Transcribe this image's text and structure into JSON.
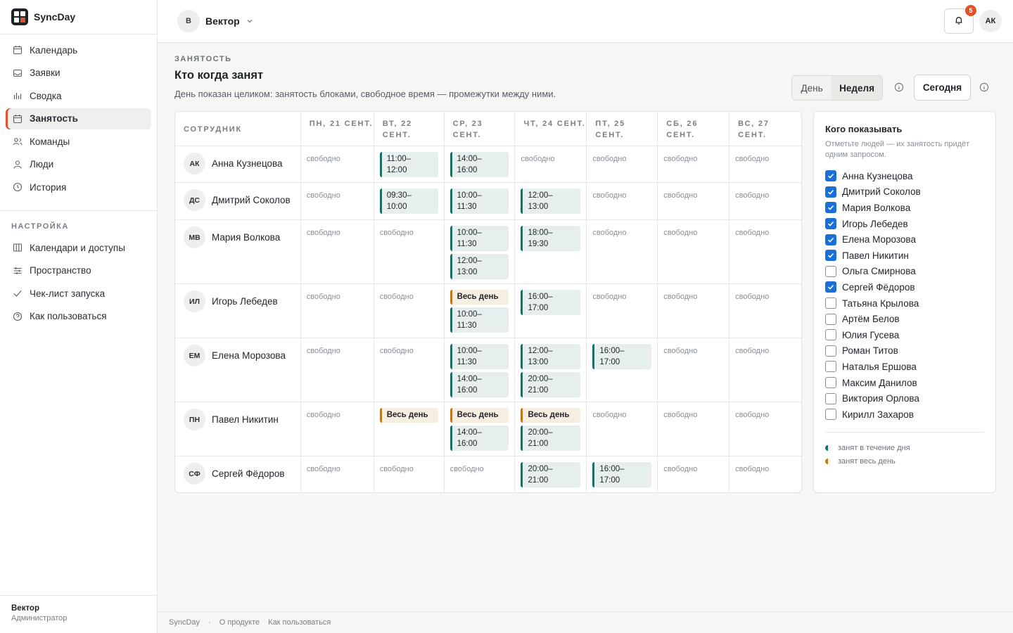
{
  "brand": {
    "name": "SyncDay"
  },
  "sidebar": {
    "items": [
      {
        "label": "Календарь",
        "icon": "calendar-icon"
      },
      {
        "label": "Заявки",
        "icon": "inbox-icon"
      },
      {
        "label": "Сводка",
        "icon": "bar-chart-icon"
      },
      {
        "label": "Занятость",
        "icon": "calendar-icon",
        "active": true
      },
      {
        "label": "Команды",
        "icon": "users-icon"
      },
      {
        "label": "Люди",
        "icon": "user-icon"
      },
      {
        "label": "История",
        "icon": "clock-icon"
      }
    ],
    "section_title": "НАСТРОЙКА",
    "settings_items": [
      {
        "label": "Календари и доступы",
        "icon": "columns-icon"
      },
      {
        "label": "Пространство",
        "icon": "sliders-icon"
      },
      {
        "label": "Чек-лист запуска",
        "icon": "check-icon"
      },
      {
        "label": "Как пользоваться",
        "icon": "help-circle-icon"
      }
    ],
    "footer": {
      "name": "Вектор",
      "role": "Администратор"
    }
  },
  "topbar": {
    "workspace_initial": "В",
    "workspace_name": "Вектор",
    "notifications_count": "5",
    "user_initials": "АК"
  },
  "page": {
    "eyebrow": "ЗАНЯТОСТЬ",
    "title": "Кто когда занят",
    "subtitle": "День показан целиком: занятость блоками, свободное время — промежутки между ними.",
    "view_day": "День",
    "view_week": "Неделя",
    "today_label": "Сегодня"
  },
  "grid": {
    "employee_header": "СОТРУДНИК",
    "days": [
      "ПН, 21 СЕНТ.",
      "ВТ, 22 СЕНТ.",
      "СР, 23 СЕНТ.",
      "ЧТ, 24 СЕНТ.",
      "ПТ, 25 СЕНТ.",
      "СБ, 26 СЕНТ.",
      "ВС, 27 СЕНТ."
    ],
    "free_label": "свободно",
    "rows": [
      {
        "initials": "АК",
        "name": "Анна Кузнецова",
        "height": 52,
        "cells": [
          [],
          [
            {
              "t": "11:00–\n12:00"
            }
          ],
          [
            {
              "t": "14:00–\n16:00"
            }
          ],
          [],
          [],
          [],
          []
        ]
      },
      {
        "initials": "ДС",
        "name": "Дмитрий Соколов",
        "height": 53,
        "cells": [
          [],
          [
            {
              "t": "09:30–\n10:00"
            }
          ],
          [
            {
              "t": "10:00–\n11:30"
            }
          ],
          [
            {
              "t": "12:00–\n13:00"
            }
          ],
          [],
          [],
          []
        ]
      },
      {
        "initials": "МВ",
        "name": "Мария Волкова",
        "height": 91,
        "cells": [
          [],
          [],
          [
            {
              "t": "10:00–\n11:30"
            },
            {
              "t": "12:00–\n13:00"
            }
          ],
          [
            {
              "t": "18:00–\n19:30"
            }
          ],
          [],
          [],
          []
        ]
      },
      {
        "initials": "ИЛ",
        "name": "Игорь Лебедев",
        "height": 77,
        "cells": [
          [],
          [],
          [
            {
              "t": "Весь день",
              "all": true
            },
            {
              "t": "10:00–\n11:30"
            }
          ],
          [
            {
              "t": "16:00–\n17:00"
            }
          ],
          [],
          [],
          []
        ]
      },
      {
        "initials": "ЕМ",
        "name": "Елена Морозова",
        "height": 91,
        "cells": [
          [],
          [],
          [
            {
              "t": "10:00–\n11:30"
            },
            {
              "t": "14:00–\n16:00"
            }
          ],
          [
            {
              "t": "12:00–\n13:00"
            },
            {
              "t": "20:00–\n21:00"
            }
          ],
          [
            {
              "t": "16:00–\n17:00"
            }
          ],
          [],
          []
        ]
      },
      {
        "initials": "ПН",
        "name": "Павел Никитин",
        "height": 77,
        "cells": [
          [],
          [
            {
              "t": "Весь день",
              "all": true
            }
          ],
          [
            {
              "t": "Весь день",
              "all": true
            },
            {
              "t": "14:00–\n16:00"
            }
          ],
          [
            {
              "t": "Весь день",
              "all": true
            },
            {
              "t": "20:00–\n21:00"
            }
          ],
          [],
          [],
          []
        ]
      },
      {
        "initials": "СФ",
        "name": "Сергей Фёдоров",
        "height": 51,
        "cells": [
          [],
          [],
          [],
          [
            {
              "t": "20:00–\n21:00"
            }
          ],
          [
            {
              "t": "16:00–\n17:00"
            }
          ],
          [],
          []
        ]
      }
    ]
  },
  "panel": {
    "title": "Кого показывать",
    "hint": "Отметьте людей — их занятость придёт одним запросом.",
    "people": [
      {
        "name": "Анна Кузнецова",
        "checked": true
      },
      {
        "name": "Дмитрий Соколов",
        "checked": true
      },
      {
        "name": "Мария Волкова",
        "checked": true
      },
      {
        "name": "Игорь Лебедев",
        "checked": true
      },
      {
        "name": "Елена Морозова",
        "checked": true
      },
      {
        "name": "Павел Никитин",
        "checked": true
      },
      {
        "name": "Ольга Смирнова",
        "checked": false
      },
      {
        "name": "Сергей Фёдоров",
        "checked": true
      },
      {
        "name": "Татьяна Крылова",
        "checked": false
      },
      {
        "name": "Артём Белов",
        "checked": false
      },
      {
        "name": "Юлия Гусева",
        "checked": false
      },
      {
        "name": "Роман Титов",
        "checked": false
      },
      {
        "name": "Наталья Ершова",
        "checked": false
      },
      {
        "name": "Максим Данилов",
        "checked": false
      },
      {
        "name": "Виктория Орлова",
        "checked": false
      },
      {
        "name": "Кирилл Захаров",
        "checked": false
      }
    ],
    "legend_partial": "занят в течение дня",
    "legend_all": "занят весь день"
  },
  "footer": {
    "brand": "SyncDay",
    "sep": "·",
    "about": "О продукте",
    "help": "Как пользоваться"
  },
  "colors": {
    "accent": "#e0522b",
    "busy": "#1e6e64",
    "allday": "#c07a1c",
    "checkbox": "#1a6fd8"
  }
}
